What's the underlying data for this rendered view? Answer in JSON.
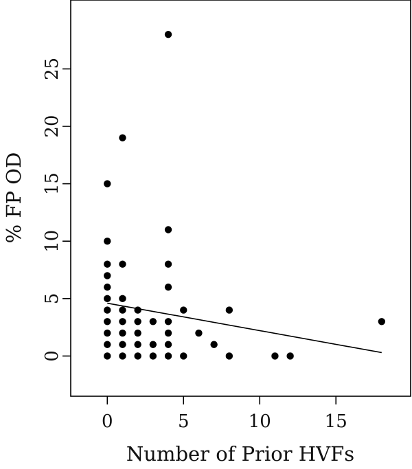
{
  "chart_data": {
    "type": "scatter",
    "xlabel": "Number of Prior HVFs",
    "ylabel": "% FP OD",
    "xlim": [
      -2.4,
      19.9
    ],
    "ylim": [
      -3.5,
      31.0
    ],
    "xticks": [
      0,
      5,
      10,
      15
    ],
    "yticks": [
      0,
      5,
      10,
      15,
      20,
      25
    ],
    "xtick_labels": [
      "0",
      "5",
      "10",
      "15"
    ],
    "ytick_labels": [
      "0",
      "5",
      "10",
      "15",
      "20",
      "25"
    ],
    "grid": false,
    "legend": "none",
    "points": [
      {
        "x": 0,
        "y": 0
      },
      {
        "x": 0,
        "y": 1
      },
      {
        "x": 0,
        "y": 2
      },
      {
        "x": 0,
        "y": 3
      },
      {
        "x": 0,
        "y": 4
      },
      {
        "x": 0,
        "y": 5
      },
      {
        "x": 0,
        "y": 6
      },
      {
        "x": 0,
        "y": 7
      },
      {
        "x": 0,
        "y": 8
      },
      {
        "x": 0,
        "y": 10
      },
      {
        "x": 0,
        "y": 15
      },
      {
        "x": 1,
        "y": 0
      },
      {
        "x": 1,
        "y": 1
      },
      {
        "x": 1,
        "y": 2
      },
      {
        "x": 1,
        "y": 3
      },
      {
        "x": 1,
        "y": 4
      },
      {
        "x": 1,
        "y": 5
      },
      {
        "x": 1,
        "y": 8
      },
      {
        "x": 1,
        "y": 19
      },
      {
        "x": 2,
        "y": 0
      },
      {
        "x": 2,
        "y": 1
      },
      {
        "x": 2,
        "y": 2
      },
      {
        "x": 2,
        "y": 3
      },
      {
        "x": 2,
        "y": 4
      },
      {
        "x": 3,
        "y": 0
      },
      {
        "x": 3,
        "y": 1
      },
      {
        "x": 3,
        "y": 3
      },
      {
        "x": 4,
        "y": 0
      },
      {
        "x": 4,
        "y": 1
      },
      {
        "x": 4,
        "y": 2
      },
      {
        "x": 4,
        "y": 3
      },
      {
        "x": 4,
        "y": 6
      },
      {
        "x": 4,
        "y": 8
      },
      {
        "x": 4,
        "y": 11
      },
      {
        "x": 4,
        "y": 28
      },
      {
        "x": 5,
        "y": 0
      },
      {
        "x": 5,
        "y": 4
      },
      {
        "x": 6,
        "y": 2
      },
      {
        "x": 7,
        "y": 1
      },
      {
        "x": 8,
        "y": 0
      },
      {
        "x": 8,
        "y": 4
      },
      {
        "x": 11,
        "y": 0
      },
      {
        "x": 12,
        "y": 0
      },
      {
        "x": 18,
        "y": 3
      }
    ],
    "trend_line": {
      "x": [
        0,
        18
      ],
      "y": [
        4.6,
        0.3
      ]
    },
    "colors": {
      "marker": "#000000",
      "line": "#000000",
      "axis": "#000000"
    }
  }
}
